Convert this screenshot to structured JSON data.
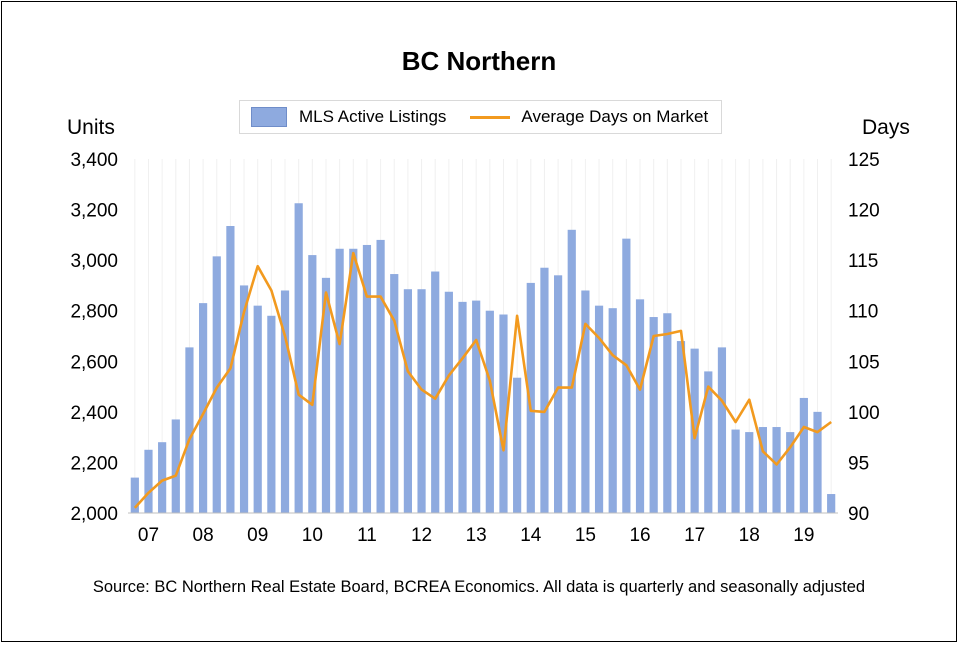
{
  "chart_data": {
    "type": "bar+line",
    "title": "BC Northern",
    "left_axis_label": "Units",
    "right_axis_label": "Days",
    "left_ylim": [
      2000,
      3400
    ],
    "left_ticks": [
      "2,000",
      "2,200",
      "2,400",
      "2,600",
      "2,800",
      "3,000",
      "3,200",
      "3,400"
    ],
    "left_tick_values": [
      2000,
      2200,
      2400,
      2600,
      2800,
      3000,
      3200,
      3400
    ],
    "right_ylim": [
      90,
      125
    ],
    "right_ticks": [
      "90",
      "95",
      "100",
      "105",
      "110",
      "115",
      "120",
      "125"
    ],
    "right_tick_values": [
      90,
      95,
      100,
      105,
      110,
      115,
      120,
      125
    ],
    "x_ticks": [
      "07",
      "08",
      "09",
      "10",
      "11",
      "12",
      "13",
      "14",
      "15",
      "16",
      "17",
      "18",
      "19"
    ],
    "x_tick_quarter_index": [
      1,
      5,
      9,
      13,
      17,
      21,
      25,
      29,
      33,
      37,
      41,
      45,
      49
    ],
    "grid": true,
    "legend_position": "top",
    "series": [
      {
        "name": "MLS Active Listings",
        "kind": "bar",
        "axis": "left",
        "color": "#8eaadf",
        "values": [
          2140,
          2250,
          2280,
          2370,
          2655,
          2830,
          3015,
          3135,
          2900,
          2820,
          2780,
          2880,
          3225,
          3020,
          2930,
          3045,
          3045,
          3060,
          3080,
          2945,
          2885,
          2885,
          2955,
          2875,
          2835,
          2840,
          2800,
          2785,
          2535,
          2910,
          2970,
          2940,
          3120,
          2880,
          2820,
          2810,
          3085,
          2845,
          2775,
          2790,
          2680,
          2650,
          2560,
          2655,
          2330,
          2320,
          2340,
          2340,
          2320,
          2455,
          2400,
          2075
        ]
      },
      {
        "name": "Average Days on Market",
        "kind": "line",
        "axis": "right",
        "color": "#f29a1f",
        "values": [
          90.5,
          92.0,
          93.2,
          93.7,
          97.3,
          99.8,
          102.4,
          104.3,
          109.9,
          114.4,
          112.0,
          107.5,
          101.7,
          100.7,
          111.8,
          106.7,
          115.7,
          111.4,
          111.4,
          109.0,
          104.0,
          102.2,
          101.3,
          103.6,
          105.3,
          107.1,
          103.1,
          96.2,
          109.5,
          100.1,
          100.0,
          102.4,
          102.4,
          108.7,
          107.3,
          105.6,
          104.6,
          102.2,
          107.5,
          107.7,
          108.0,
          97.4,
          102.5,
          101.1,
          99.0,
          101.2,
          96.1,
          94.8,
          96.5,
          98.5,
          98.0,
          99.0
        ]
      }
    ]
  },
  "footer": {
    "source": "Source: BC Northern Real Estate Board, BCREA Economics. All data is quarterly and seasonally adjusted"
  }
}
